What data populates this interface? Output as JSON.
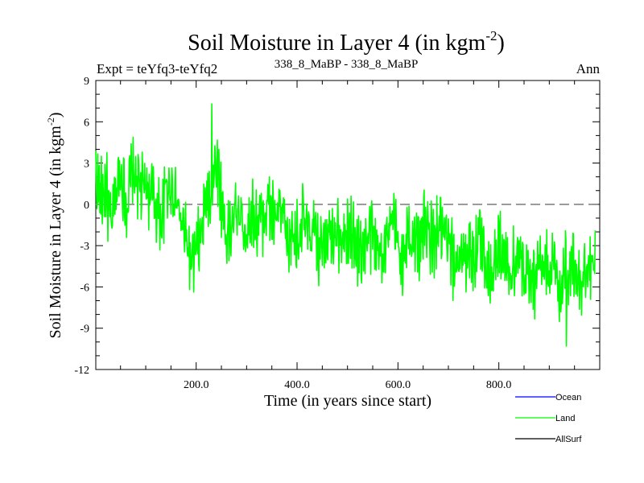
{
  "chart_data": {
    "type": "line",
    "title": "Soil Moisture in Layer 4 (in kgm",
    "title_sup": "-2",
    "title_close": ")",
    "subtitle_left": "Expt = teYfq3-teYfq2",
    "subtitle_center": "338_8_MaBP - 338_8_MaBP",
    "subtitle_right": "Ann",
    "xlabel": "Time (in years since start)",
    "ylabel": "Soil Moisture in Layer 4 (in kgm",
    "ylabel_sup": "-2",
    "ylabel_close": ")",
    "xlim": [
      1,
      1000
    ],
    "ylim": [
      -12,
      9
    ],
    "xticks": [
      200,
      400,
      600,
      800
    ],
    "xtick_labels": [
      "200.0",
      "400.0",
      "600.0",
      "800.0"
    ],
    "yticks": [
      -12,
      -9,
      -6,
      -3,
      0,
      3,
      6,
      9
    ],
    "ytick_labels": [
      "-12",
      "-9",
      "-6",
      "-3",
      "0",
      "3",
      "6",
      "9"
    ],
    "reference_line": 0,
    "series": [
      {
        "name": "Land",
        "color": "#00ff00",
        "x_start": 1,
        "x_step": 10,
        "values": [
          2.0,
          0.5,
          1.5,
          -2.0,
          1.0,
          2.5,
          0.0,
          1.8,
          2.2,
          0.8,
          1.5,
          0.5,
          0.0,
          -1.0,
          1.2,
          1.5,
          0.3,
          -1.5,
          -2.5,
          -4.5,
          -3.5,
          -2.0,
          0.5,
          1.0,
          3.5,
          0.0,
          -2.5,
          -1.5,
          -0.5,
          -1.0,
          -2.0,
          -0.5,
          -1.5,
          -1.0,
          0.0,
          -1.0,
          -0.8,
          -0.5,
          -3.5,
          -2.0,
          -2.5,
          -1.0,
          -2.2,
          -1.8,
          -3.5,
          -2.0,
          -1.8,
          -1.5,
          -2.0,
          -2.8,
          -2.5,
          -1.5,
          -3.5,
          -3.0,
          -2.5,
          -2.0,
          -3.8,
          -3.0,
          -2.5,
          -1.5,
          -3.0,
          -4.5,
          -2.0,
          -2.5,
          -3.0,
          -1.5,
          -2.0,
          -3.0,
          -1.5,
          -2.5,
          -3.0,
          -4.5,
          -3.5,
          -4.0,
          -3.0,
          -3.8,
          -2.5,
          -3.5,
          -5.0,
          -4.5,
          -3.0,
          -4.0,
          -5.0,
          -4.2,
          -3.5,
          -6.0,
          -4.5,
          -5.5,
          -3.5,
          -5.0,
          -4.0,
          -4.5,
          -6.5,
          -4.0,
          -5.0,
          -3.5,
          -5.5,
          -5.0,
          -4.5,
          -4.0
        ],
        "min": -10.3,
        "max": 7.3
      },
      {
        "name": "Ocean",
        "color": "#0000ff",
        "values": []
      },
      {
        "name": "AllSurf",
        "color": "#000000",
        "values": []
      }
    ],
    "legend": {
      "placement": "bottom-right",
      "entries": [
        {
          "label": "Ocean",
          "color": "#0000ff"
        },
        {
          "label": "Land",
          "color": "#00ff00"
        },
        {
          "label": "AllSurf",
          "color": "#000000"
        }
      ]
    }
  }
}
